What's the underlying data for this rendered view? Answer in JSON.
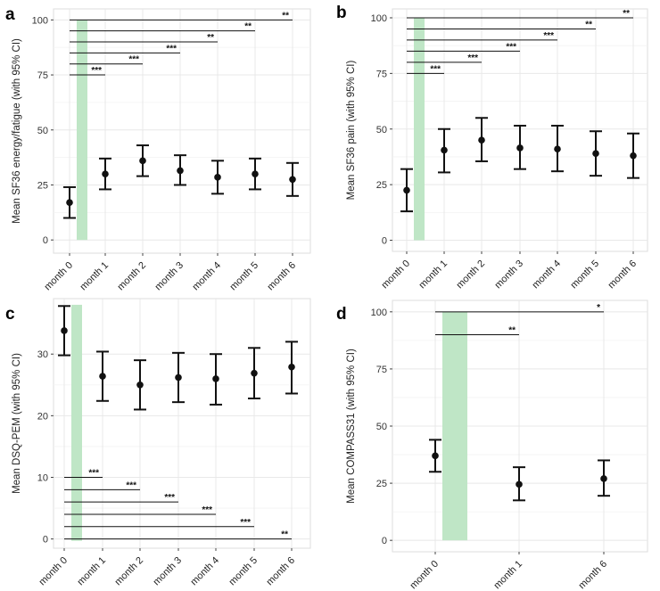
{
  "colors": {
    "band": "#bfe6c6",
    "panel_border": "#dddddd",
    "grid_major": "#e8e8e8",
    "grid_minor": "#f3f3f3",
    "mark": "#111111"
  },
  "chart_data": [
    {
      "panel": "a",
      "type": "errorbar",
      "ylabel": "Mean SF36 energy/fatigue (with 95% CI)",
      "ylim": [
        -6,
        105
      ],
      "yticks": [
        0,
        25,
        50,
        75,
        100
      ],
      "categories": [
        "month 0",
        "month 1",
        "month 2",
        "month 3",
        "month 4",
        "month 5",
        "month 6"
      ],
      "mean": [
        17,
        30,
        36,
        31.5,
        28.5,
        30,
        27.5
      ],
      "lower": [
        10,
        23,
        29,
        25,
        21,
        23,
        20
      ],
      "upper": [
        24,
        37,
        43,
        38.5,
        36,
        37,
        35
      ],
      "band_after_category": 0,
      "comparisons": [
        {
          "to": "month 1",
          "y": 75,
          "label": "***"
        },
        {
          "to": "month 2",
          "y": 80,
          "label": "***"
        },
        {
          "to": "month 3",
          "y": 85,
          "label": "***"
        },
        {
          "to": "month 4",
          "y": 90,
          "label": "**"
        },
        {
          "to": "month 5",
          "y": 95,
          "label": "**"
        },
        {
          "to": "month 6",
          "y": 100,
          "label": "**"
        }
      ]
    },
    {
      "panel": "b",
      "type": "errorbar",
      "ylabel": "Mean SF36 pain (with 95% CI)",
      "ylim": [
        -5,
        104
      ],
      "yticks": [
        0,
        25,
        50,
        75,
        100
      ],
      "categories": [
        "month 0",
        "month 1",
        "month 2",
        "month 3",
        "month 4",
        "month 5",
        "month 6"
      ],
      "mean": [
        22.5,
        40.5,
        45,
        41.5,
        41,
        39,
        38
      ],
      "lower": [
        13,
        30.5,
        35.5,
        32,
        31,
        29,
        28
      ],
      "upper": [
        32,
        50,
        55,
        51.5,
        51.5,
        49,
        48
      ],
      "band_after_category": 0,
      "comparisons": [
        {
          "to": "month 1",
          "y": 75,
          "label": "***"
        },
        {
          "to": "month 2",
          "y": 80,
          "label": "***"
        },
        {
          "to": "month 3",
          "y": 85,
          "label": "***"
        },
        {
          "to": "month 4",
          "y": 90,
          "label": "***"
        },
        {
          "to": "month 5",
          "y": 95,
          "label": "**"
        },
        {
          "to": "month 6",
          "y": 100,
          "label": "**"
        }
      ]
    },
    {
      "panel": "c",
      "type": "errorbar",
      "ylabel": "Mean DSQ-PEM (with 95% CI)",
      "ylim": [
        -1.5,
        39
      ],
      "yticks": [
        0,
        10,
        20,
        30
      ],
      "categories": [
        "month 0",
        "month 1",
        "month 2",
        "month 3",
        "month 4",
        "month 5",
        "month 6"
      ],
      "mean": [
        33.8,
        26.4,
        25,
        26.2,
        26,
        26.9,
        27.9
      ],
      "lower": [
        29.8,
        22.4,
        21,
        22.2,
        21.8,
        22.8,
        23.6
      ],
      "upper": [
        37.8,
        30.4,
        29,
        30.2,
        30,
        31,
        32
      ],
      "band_after_category": 0,
      "comparisons": [
        {
          "to": "month 1",
          "y": 10,
          "label": "***"
        },
        {
          "to": "month 2",
          "y": 8,
          "label": "***"
        },
        {
          "to": "month 3",
          "y": 6,
          "label": "***"
        },
        {
          "to": "month 4",
          "y": 4,
          "label": "***"
        },
        {
          "to": "month 5",
          "y": 2,
          "label": "***"
        },
        {
          "to": "month 6",
          "y": 0,
          "label": "**"
        }
      ]
    },
    {
      "panel": "d",
      "type": "errorbar",
      "ylabel": "Mean COMPASS31 (with 95% CI)",
      "ylim": [
        -5,
        105
      ],
      "yticks": [
        0,
        25,
        50,
        75,
        100
      ],
      "categories": [
        "month 0",
        "month 1",
        "month 6"
      ],
      "mean": [
        37,
        24.5,
        27
      ],
      "lower": [
        30,
        17.5,
        19.5
      ],
      "upper": [
        44,
        32,
        35
      ],
      "band_after_category": 0,
      "comparisons": [
        {
          "to": "month 1",
          "y": 90,
          "label": "**"
        },
        {
          "to": "month 6",
          "y": 100,
          "label": "*"
        }
      ]
    }
  ]
}
